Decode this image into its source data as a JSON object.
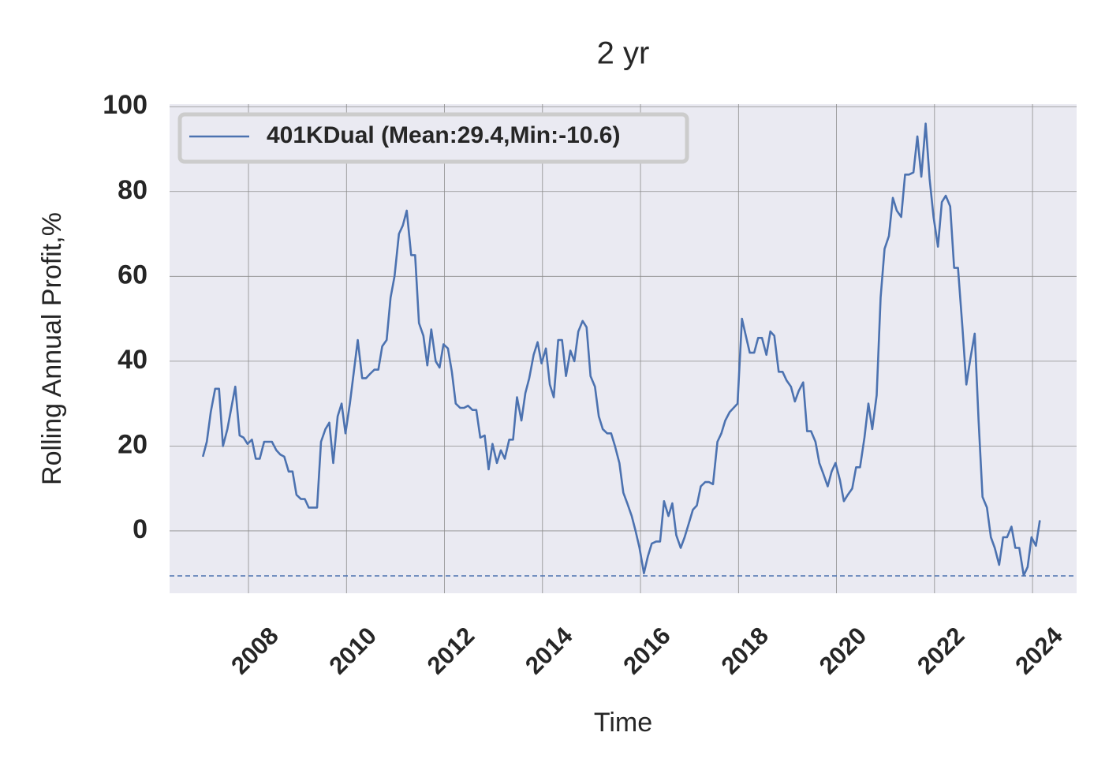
{
  "chart_data": {
    "type": "line",
    "title": "2 yr",
    "xlabel": "Time",
    "ylabel": "Rolling Annual Profit,%",
    "xlim": [
      2006.39,
      2024.9
    ],
    "xticks": [
      2008,
      2010,
      2012,
      2014,
      2016,
      2018,
      2020,
      2022,
      2024
    ],
    "ylim": [
      -14.7,
      100.6
    ],
    "yticks": [
      0,
      20,
      40,
      60,
      80,
      100
    ],
    "grid": true,
    "legend": "upper left",
    "hline": {
      "value": -10.6,
      "color": "#4c72b0"
    },
    "x": [
      2007.07,
      2007.15,
      2007.23,
      2007.32,
      2007.4,
      2007.48,
      2007.57,
      2007.65,
      2007.73,
      2007.82,
      2007.9,
      2007.98,
      2008.07,
      2008.15,
      2008.23,
      2008.32,
      2008.4,
      2008.48,
      2008.57,
      2008.65,
      2008.73,
      2008.82,
      2008.9,
      2008.98,
      2009.07,
      2009.15,
      2009.23,
      2009.32,
      2009.4,
      2009.48,
      2009.57,
      2009.65,
      2009.73,
      2009.82,
      2009.9,
      2009.98,
      2010.07,
      2010.15,
      2010.23,
      2010.32,
      2010.4,
      2010.48,
      2010.57,
      2010.65,
      2010.73,
      2010.82,
      2010.9,
      2010.98,
      2011.07,
      2011.15,
      2011.23,
      2011.32,
      2011.4,
      2011.48,
      2011.57,
      2011.65,
      2011.73,
      2011.82,
      2011.9,
      2011.98,
      2012.07,
      2012.15,
      2012.23,
      2012.32,
      2012.4,
      2012.48,
      2012.57,
      2012.65,
      2012.73,
      2012.82,
      2012.9,
      2012.98,
      2013.07,
      2013.15,
      2013.23,
      2013.32,
      2013.4,
      2013.48,
      2013.57,
      2013.65,
      2013.73,
      2013.82,
      2013.9,
      2013.98,
      2014.07,
      2014.15,
      2014.23,
      2014.32,
      2014.4,
      2014.48,
      2014.57,
      2014.65,
      2014.73,
      2014.82,
      2014.9,
      2014.98,
      2015.07,
      2015.15,
      2015.23,
      2015.32,
      2015.4,
      2015.48,
      2015.57,
      2015.65,
      2015.73,
      2015.82,
      2015.9,
      2015.98,
      2016.07,
      2016.15,
      2016.23,
      2016.32,
      2016.4,
      2016.48,
      2016.57,
      2016.65,
      2016.73,
      2016.82,
      2016.9,
      2016.98,
      2017.07,
      2017.15,
      2017.23,
      2017.32,
      2017.4,
      2017.48,
      2017.57,
      2017.65,
      2017.73,
      2017.82,
      2017.9,
      2017.98,
      2018.07,
      2018.15,
      2018.23,
      2018.32,
      2018.4,
      2018.48,
      2018.57,
      2018.65,
      2018.73,
      2018.82,
      2018.9,
      2018.98,
      2019.07,
      2019.15,
      2019.23,
      2019.32,
      2019.4,
      2019.48,
      2019.57,
      2019.65,
      2019.73,
      2019.82,
      2019.9,
      2019.98,
      2020.07,
      2020.15,
      2020.23,
      2020.32,
      2020.4,
      2020.48,
      2020.57,
      2020.65,
      2020.73,
      2020.82,
      2020.9,
      2020.98,
      2021.07,
      2021.15,
      2021.23,
      2021.32,
      2021.4,
      2021.48,
      2021.57,
      2021.65,
      2021.73,
      2021.82,
      2021.9,
      2021.98,
      2022.07,
      2022.15,
      2022.23,
      2022.32,
      2022.4,
      2022.48,
      2022.57,
      2022.65,
      2022.73,
      2022.82,
      2022.9,
      2022.98,
      2023.07,
      2023.15,
      2023.23,
      2023.32,
      2023.4,
      2023.48,
      2023.57,
      2023.65,
      2023.73,
      2023.82,
      2023.9,
      2023.98,
      2024.07,
      2024.15
    ],
    "series": [
      {
        "name": "401KDual (Mean:29.4,Min:-10.6)",
        "color": "#4c72b0",
        "values": [
          17.5,
          21,
          28,
          33.5,
          33.5,
          20,
          24,
          29,
          34,
          22.5,
          22,
          20.5,
          21.5,
          17,
          17,
          21,
          21,
          21,
          19,
          18,
          17.5,
          14,
          14,
          8.5,
          7.5,
          7.5,
          5.5,
          5.5,
          5.5,
          21,
          24,
          25.5,
          16,
          27,
          30,
          23,
          30,
          37.5,
          45,
          36,
          36,
          37,
          38,
          38,
          43.5,
          45,
          55,
          60,
          70,
          72,
          75.5,
          65,
          65,
          49,
          46,
          39,
          47.5,
          40,
          38.5,
          44,
          43,
          37.5,
          30,
          29,
          29,
          29.5,
          28.5,
          28.5,
          22,
          22.5,
          14.5,
          20.5,
          16,
          19,
          17,
          21.5,
          21.5,
          31.5,
          26,
          32.5,
          36,
          41.5,
          44.5,
          39.5,
          43,
          34.5,
          31.5,
          45,
          45,
          36.5,
          42.5,
          40,
          47,
          49.5,
          48,
          36.5,
          34,
          27,
          24,
          23,
          23,
          20,
          16,
          9,
          6.5,
          3.5,
          0,
          -4,
          -10,
          -6,
          -3,
          -2.5,
          -2.5,
          7,
          3.5,
          6.5,
          -1,
          -4,
          -1.5,
          1.5,
          5,
          6,
          10.5,
          11.5,
          11.5,
          11,
          21,
          23,
          26,
          28,
          29,
          30,
          50,
          46,
          42,
          42,
          45.5,
          45.5,
          41.5,
          47,
          46,
          37.5,
          37.5,
          35.5,
          34,
          30.5,
          33,
          35,
          23.5,
          23.5,
          21,
          16,
          13.5,
          10.5,
          14,
          16,
          12,
          7,
          8.5,
          10,
          15,
          15,
          22,
          30,
          24,
          32,
          55,
          66.5,
          69.5,
          78.5,
          75.5,
          74,
          84,
          84,
          84.5,
          93,
          83.5,
          96,
          83,
          74,
          67,
          77.5,
          79,
          76.5,
          62,
          62,
          48,
          34.5,
          40.5,
          46.5,
          26,
          8,
          5.5,
          -1.5,
          -4,
          -8,
          -1.5,
          -1.5,
          1,
          -4,
          -4,
          -10.5,
          -8.5,
          -1.5,
          -3.5,
          2.5
        ]
      }
    ]
  }
}
